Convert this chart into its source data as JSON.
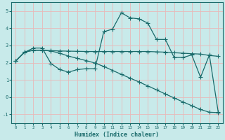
{
  "xlabel": "Humidex (Indice chaleur)",
  "bg_color": "#c8eaea",
  "grid_color": "#e8b8b8",
  "line_color": "#1a6b6b",
  "x_ticks": [
    0,
    1,
    2,
    3,
    4,
    5,
    6,
    7,
    8,
    9,
    10,
    11,
    12,
    13,
    14,
    15,
    16,
    17,
    18,
    19,
    20,
    21,
    22,
    23
  ],
  "y_ticks": [
    -1,
    0,
    1,
    2,
    3,
    4,
    5
  ],
  "ylim": [
    -1.5,
    5.5
  ],
  "xlim": [
    -0.5,
    23.5
  ],
  "line1_x": [
    0,
    1,
    2,
    3,
    4,
    5,
    6,
    7,
    8,
    9,
    10,
    11,
    12,
    13,
    14,
    15,
    16,
    17,
    18,
    19,
    20,
    21,
    22,
    23
  ],
  "line1_y": [
    2.1,
    2.6,
    2.85,
    2.85,
    1.95,
    1.6,
    1.45,
    1.6,
    1.65,
    1.65,
    3.8,
    3.95,
    4.9,
    4.6,
    4.55,
    4.3,
    3.35,
    3.35,
    2.3,
    2.3,
    2.45,
    1.15,
    2.45,
    -0.85
  ],
  "line2_x": [
    0,
    1,
    2,
    3,
    4,
    5,
    6,
    7,
    8,
    9,
    10,
    11,
    12,
    13,
    14,
    15,
    16,
    17,
    18,
    19,
    20,
    21,
    22,
    23
  ],
  "line2_y": [
    2.1,
    2.62,
    2.72,
    2.72,
    2.7,
    2.68,
    2.67,
    2.66,
    2.65,
    2.65,
    2.65,
    2.65,
    2.65,
    2.65,
    2.65,
    2.65,
    2.63,
    2.61,
    2.58,
    2.55,
    2.52,
    2.5,
    2.42,
    2.37
  ],
  "line3_x": [
    0,
    1,
    2,
    3,
    4,
    5,
    6,
    7,
    8,
    9,
    10,
    11,
    12,
    13,
    14,
    15,
    16,
    17,
    18,
    19,
    20,
    21,
    22,
    23
  ],
  "line3_y": [
    2.1,
    2.62,
    2.72,
    2.72,
    2.68,
    2.55,
    2.38,
    2.25,
    2.12,
    1.98,
    1.78,
    1.55,
    1.32,
    1.1,
    0.88,
    0.65,
    0.42,
    0.18,
    -0.05,
    -0.28,
    -0.5,
    -0.72,
    -0.88,
    -0.9
  ]
}
